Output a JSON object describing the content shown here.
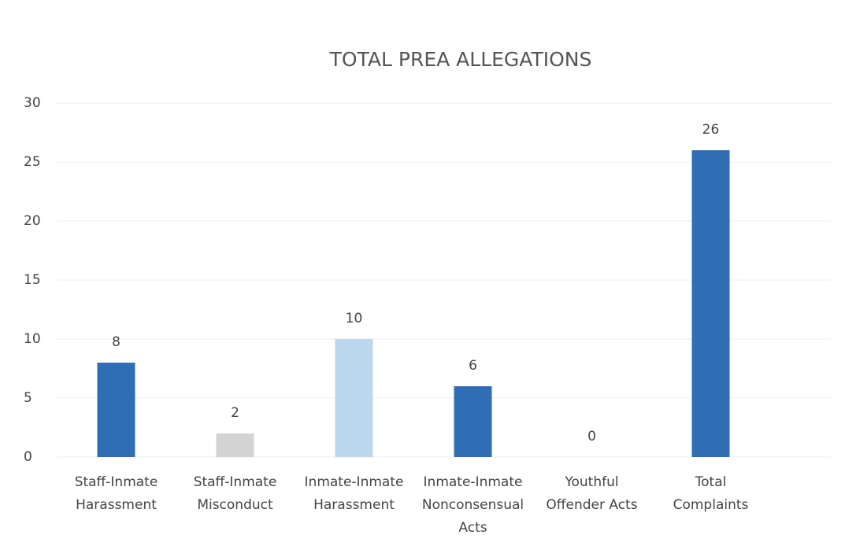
{
  "chart_data": {
    "type": "bar",
    "title": "TOTAL PREA ALLEGATIONS",
    "categories": [
      [
        "Staff-Inmate",
        "Harassment"
      ],
      [
        "Staff-Inmate",
        "Misconduct"
      ],
      [
        "Inmate-Inmate",
        "Harassment"
      ],
      [
        "Inmate-Inmate",
        "Nonconsensual",
        "Acts"
      ],
      [
        "Youthful",
        "Offender Acts"
      ],
      [
        "Total",
        "Complaints"
      ]
    ],
    "values": [
      8,
      2,
      10,
      6,
      0,
      26
    ],
    "colors": [
      "#2f6db5",
      "#d3d3d3",
      "#bdd7ef",
      "#2f6db5",
      "#2f6db5",
      "#2f6db5"
    ],
    "ylim": [
      0,
      30
    ],
    "yticks": [
      0,
      5,
      10,
      15,
      20,
      25,
      30
    ],
    "grid": true
  }
}
